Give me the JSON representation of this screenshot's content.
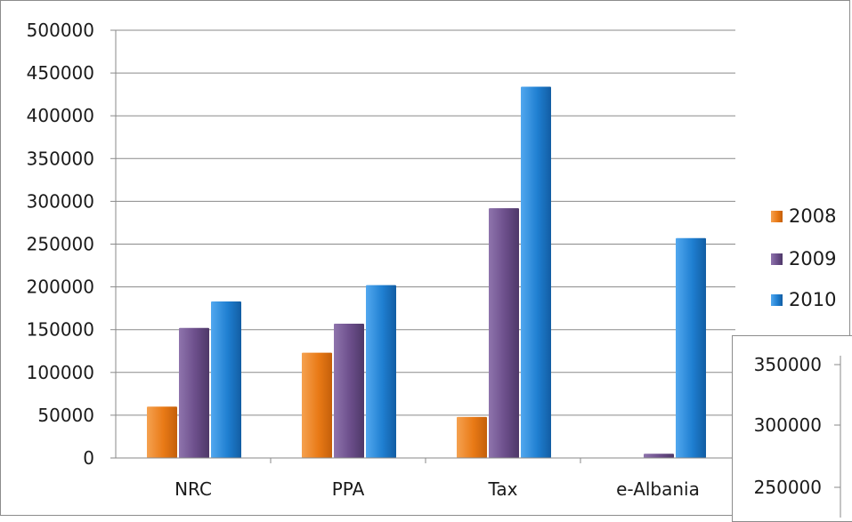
{
  "chart_data": [
    {
      "type": "bar",
      "categories": [
        "NRC",
        "PPA",
        "Tax",
        "e-Albania"
      ],
      "series": [
        {
          "name": "2008",
          "values": [
            60000,
            123000,
            48000,
            0
          ]
        },
        {
          "name": "2009",
          "values": [
            152000,
            157000,
            292000,
            5000
          ]
        },
        {
          "name": "2010",
          "values": [
            183000,
            202000,
            434000,
            257000
          ]
        }
      ],
      "ylim": [
        0,
        500000
      ],
      "yticks": [
        "0",
        "50000",
        "100000",
        "150000",
        "200000",
        "250000",
        "300000",
        "350000",
        "400000",
        "450000",
        "500000"
      ],
      "grid": true,
      "legend_position": "right",
      "colors": [
        "#e97a16",
        "#6b4e8a",
        "#1f7fd1"
      ]
    },
    {
      "type": "bar",
      "partial": true,
      "yticks": [
        "350000",
        "300000",
        "250000"
      ]
    }
  ]
}
